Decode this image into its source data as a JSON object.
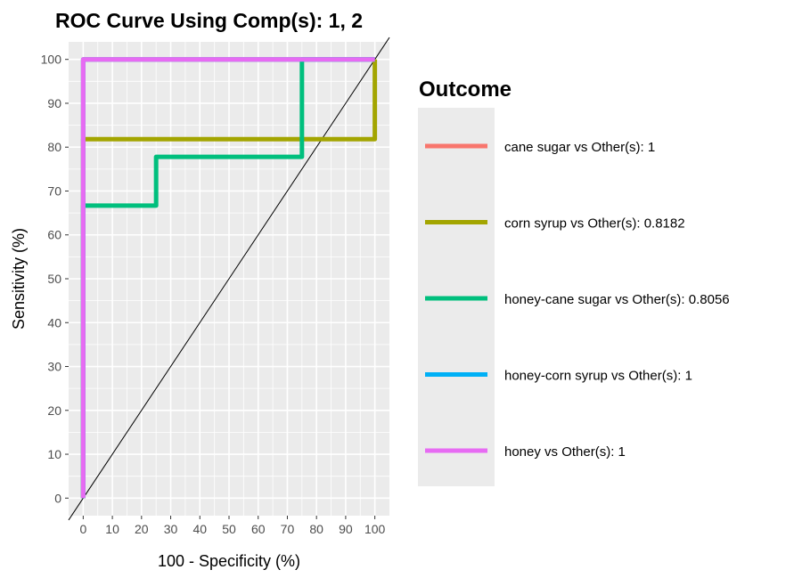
{
  "chart_data": {
    "type": "line",
    "title": "ROC Curve Using Comp(s): 1, 2",
    "xlabel": "100 - Specificity (%)",
    "ylabel": "Sensitivity (%)",
    "xlim": [
      -5,
      105
    ],
    "ylim": [
      -4,
      104
    ],
    "x_ticks": [
      0,
      10,
      20,
      30,
      40,
      50,
      60,
      70,
      80,
      90,
      100
    ],
    "y_ticks": [
      0,
      10,
      20,
      30,
      40,
      50,
      60,
      70,
      80,
      90,
      100
    ],
    "grid": true,
    "legend_title": "Outcome",
    "legend_position": "right",
    "reference_line": {
      "x": [
        -5,
        105
      ],
      "y": [
        -5,
        105
      ],
      "color": "#000000"
    },
    "series": [
      {
        "name": "cane sugar vs Other(s): 1",
        "color": "#F8766D",
        "x": [
          0,
          0,
          100
        ],
        "y": [
          0,
          100,
          100
        ]
      },
      {
        "name": "corn syrup vs Other(s): 0.8182",
        "color": "#A3A500",
        "x": [
          0,
          0,
          100,
          100
        ],
        "y": [
          0,
          81.82,
          81.82,
          100
        ]
      },
      {
        "name": "honey-cane sugar vs Other(s): 0.8056",
        "color": "#00BF7D",
        "x": [
          0,
          0,
          25,
          25,
          75,
          75,
          100
        ],
        "y": [
          0,
          66.67,
          66.67,
          77.78,
          77.78,
          100,
          100
        ]
      },
      {
        "name": "honey-corn syrup vs Other(s): 1",
        "color": "#00B0F6",
        "x": [
          0,
          0,
          100
        ],
        "y": [
          0,
          100,
          100
        ]
      },
      {
        "name": "honey vs Other(s): 1",
        "color": "#E76BF3",
        "x": [
          0,
          0,
          100
        ],
        "y": [
          0,
          100,
          100
        ]
      }
    ]
  }
}
